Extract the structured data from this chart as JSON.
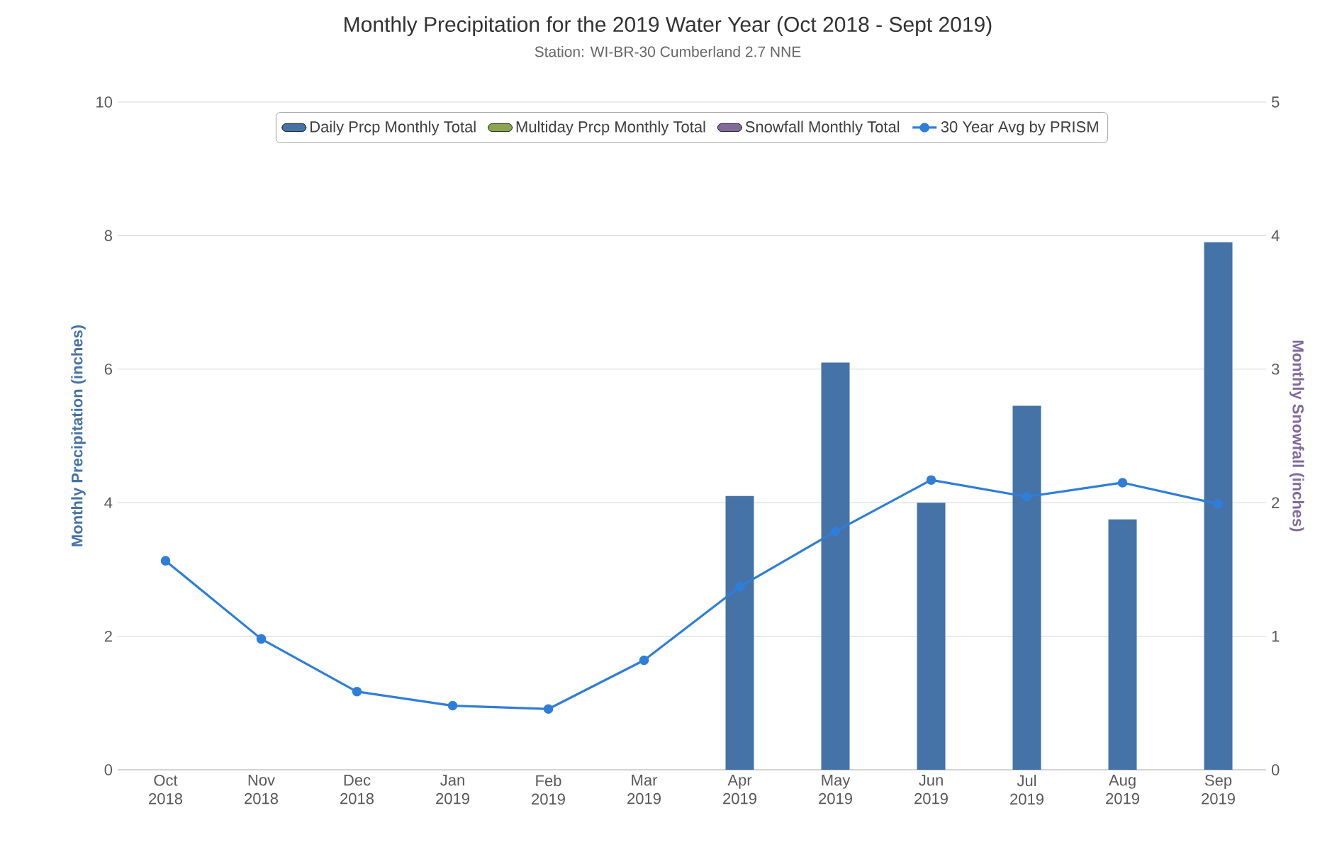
{
  "chart_data": {
    "type": "bar",
    "title": "Monthly Precipitation for the 2019 Water Year (Oct 2018 - Sept 2019)",
    "subtitle": "Station: WI-BR-30 Cumberland 2.7 NNE",
    "ylabel": "Monthly Precipitation (inches)",
    "y2label": "Monthly Snowfall (inches)",
    "categories": [
      "Oct 2018",
      "Nov 2018",
      "Dec 2018",
      "Jan 2019",
      "Feb 2019",
      "Mar 2019",
      "Apr 2019",
      "May 2019",
      "Jun 2019",
      "Jul 2019",
      "Aug 2019",
      "Sep 2019"
    ],
    "series": [
      {
        "name": "Daily Prcp Monthly Total",
        "color": "#4572a7",
        "values": [
          null,
          null,
          null,
          null,
          null,
          null,
          4.1,
          6.1,
          4.0,
          5.45,
          3.75,
          7.9
        ]
      },
      {
        "name": "Multiday Prcp Monthly Total",
        "color": "#89a54e",
        "values": [
          null,
          null,
          null,
          null,
          null,
          null,
          null,
          null,
          null,
          null,
          null,
          null
        ]
      },
      {
        "name": "Snowfall Monthly Total",
        "axis": "y2",
        "color": "#80699b",
        "values": [
          null,
          null,
          null,
          null,
          null,
          null,
          null,
          null,
          null,
          null,
          null,
          null
        ]
      },
      {
        "name": "30 Year Avg by PRISM",
        "type": "line",
        "color": "#2f7ed8",
        "marker": "circle",
        "line_style": "solid",
        "values": [
          3.13,
          1.96,
          1.17,
          0.96,
          0.91,
          1.64,
          2.74,
          3.57,
          4.34,
          4.09,
          4.3,
          3.98
        ]
      }
    ],
    "ylim": [
      0,
      10
    ],
    "yticks": [
      0,
      2,
      4,
      6,
      8,
      10
    ],
    "y2lim": [
      0,
      5
    ],
    "y2ticks": [
      0,
      1,
      2,
      3,
      4,
      5
    ],
    "grid": "y",
    "legend": "top"
  }
}
